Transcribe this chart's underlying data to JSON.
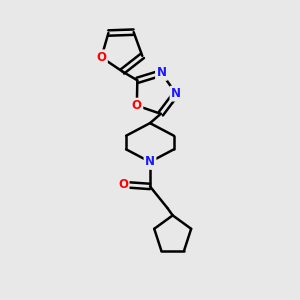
{
  "background_color": "#e8e8e8",
  "line_color": "#000000",
  "bond_width": 1.8,
  "atom_colors": {
    "N": "#1a1aff",
    "O": "#ff0000",
    "C": "#000000"
  },
  "figsize": [
    3.0,
    3.0
  ],
  "dpi": 100
}
